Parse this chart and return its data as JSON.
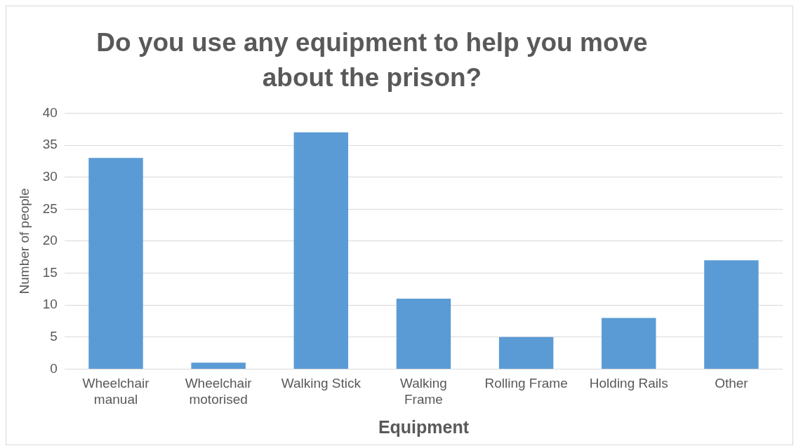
{
  "chart_data": {
    "type": "bar",
    "title": "Do you use any equipment to help you move about the prison?",
    "categories": [
      "Wheelchair\nmanual",
      "Wheelchair\nmotorised",
      "Walking Stick",
      "Walking\nFrame",
      "Rolling Frame",
      "Holding Rails",
      "Other"
    ],
    "values": [
      33,
      1,
      37,
      11,
      5,
      8,
      17
    ],
    "color": "#5b9bd5",
    "xlabel": "Equipment",
    "ylabel": "Number of people",
    "ylim": [
      0,
      40
    ],
    "yticks": [
      0,
      5,
      10,
      15,
      20,
      25,
      30,
      35,
      40
    ],
    "grid": "y",
    "legend": false
  }
}
